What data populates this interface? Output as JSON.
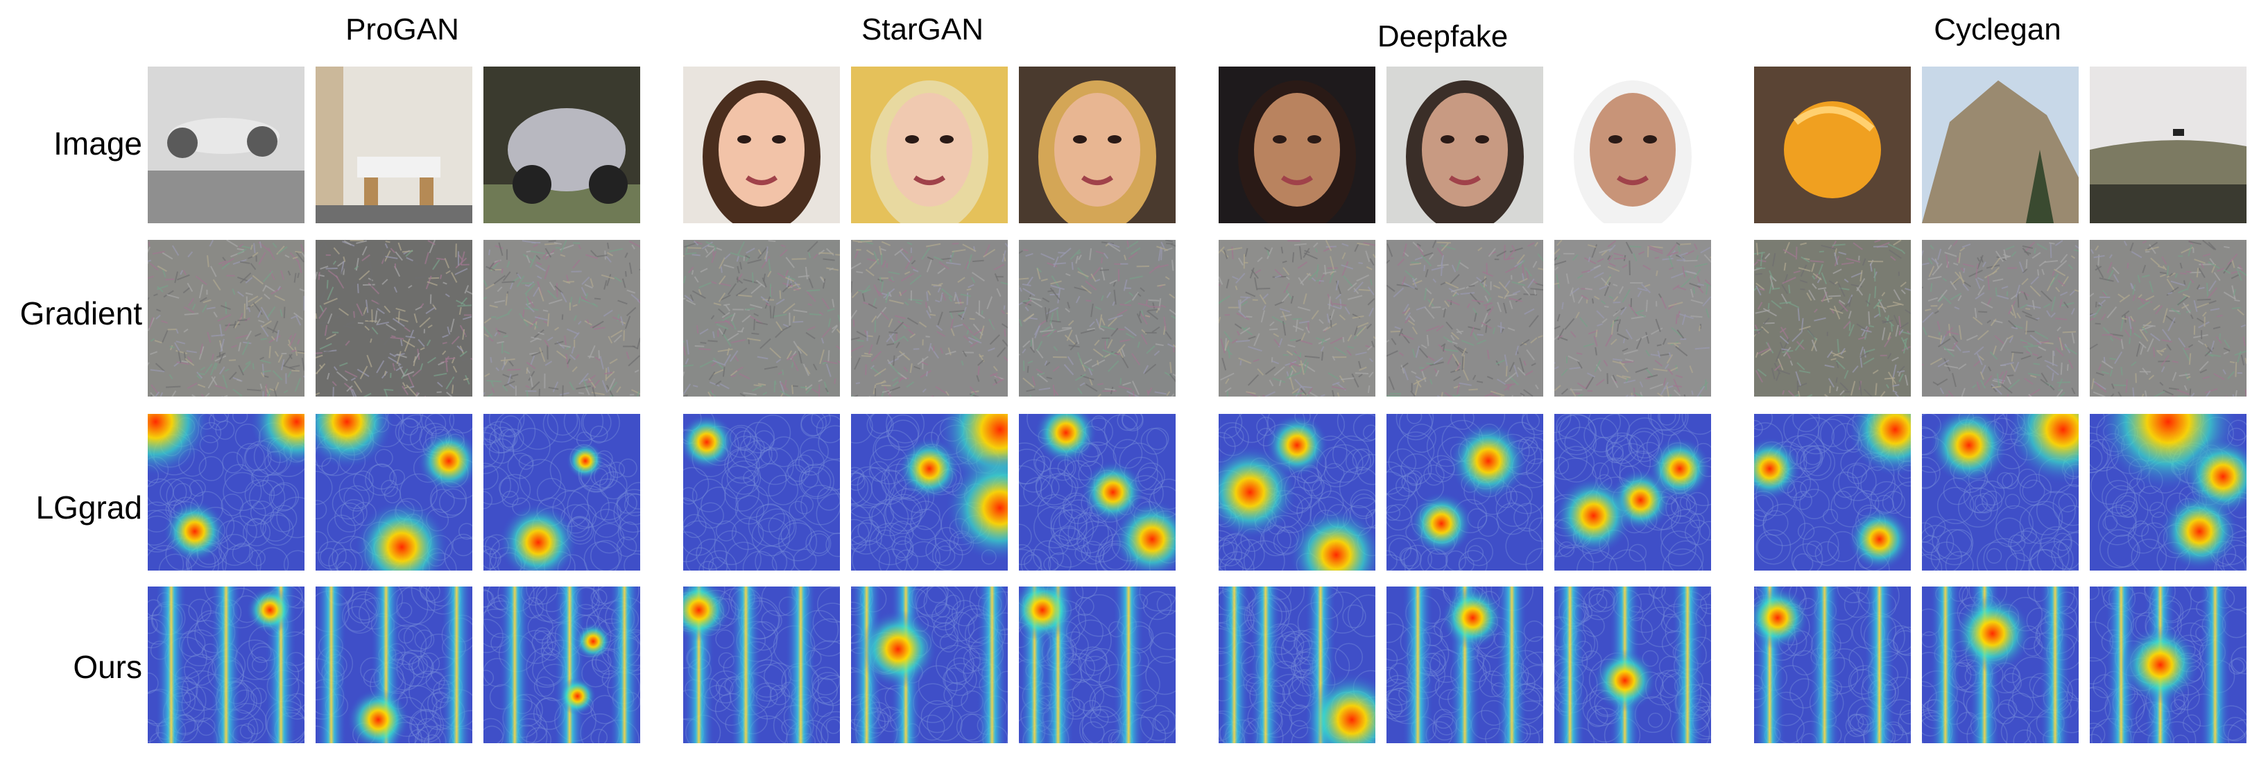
{
  "groups": [
    "ProGAN",
    "StarGAN",
    "Deepfake",
    "Cyclegan"
  ],
  "rows": [
    "Image",
    "Gradient",
    "LGgrad",
    "Ours"
  ],
  "panels": {
    "Image": [
      {
        "icon": "airplane-photo-icon",
        "colors": [
          "#d8d8d8",
          "#8f8f8f",
          "#5a5a5a"
        ]
      },
      {
        "icon": "dining-room-photo-icon",
        "colors": [
          "#e6e2da",
          "#b58a55",
          "#6e6e6e"
        ]
      },
      {
        "icon": "motor-scooter-photo-icon",
        "colors": [
          "#3a3a2e",
          "#b8b8c0",
          "#6f7a55"
        ]
      },
      {
        "icon": "face-photo-icon",
        "colors": [
          "#e9e4de",
          "#f2c3a8",
          "#4a2e1e"
        ]
      },
      {
        "icon": "face-photo-icon",
        "colors": [
          "#e5c15a",
          "#f0c9b0",
          "#e8d9a0"
        ]
      },
      {
        "icon": "face-photo-icon",
        "colors": [
          "#4a3a2e",
          "#e8b692",
          "#d4a656"
        ]
      },
      {
        "icon": "face-photo-icon",
        "colors": [
          "#1e1a1c",
          "#b9835f",
          "#2a1a16"
        ]
      },
      {
        "icon": "face-photo-icon",
        "colors": [
          "#d7d8d6",
          "#c89a82",
          "#3a2e28"
        ]
      },
      {
        "icon": "face-photo-icon",
        "colors": [
          "#ffffff",
          "#c89478",
          "#f2f2f2"
        ]
      },
      {
        "icon": "orange-photo-icon",
        "colors": [
          "#5a4434",
          "#f0a020",
          "#3a2a22"
        ]
      },
      {
        "icon": "cliff-photo-icon",
        "colors": [
          "#c8d8e8",
          "#9a8a70",
          "#3a4a30"
        ]
      },
      {
        "icon": "hill-horse-photo-icon",
        "colors": [
          "#e8e6e6",
          "#7c7a62",
          "#3a3a30"
        ]
      }
    ],
    "Gradient": [
      "#8a8a86",
      "#6e6e6c",
      "#8c8c8a",
      "#888a88",
      "#8a8a8a",
      "#868888",
      "#8e8e8c",
      "#8c8c8c",
      "#909090",
      "#7a7c72",
      "#8a8a8a",
      "#8a8a88"
    ],
    "LGgrad": [
      {
        "hotspots": [
          [
            0.05,
            0.05,
            0.35
          ],
          [
            0.95,
            0.05,
            0.3
          ],
          [
            0.3,
            0.75,
            0.2
          ]
        ]
      },
      {
        "hotspots": [
          [
            0.2,
            0.05,
            0.3
          ],
          [
            0.55,
            0.85,
            0.3
          ],
          [
            0.85,
            0.3,
            0.2
          ]
        ]
      },
      {
        "hotspots": [
          [
            0.35,
            0.82,
            0.25
          ],
          [
            0.65,
            0.3,
            0.12
          ]
        ]
      },
      {
        "hotspots": [
          [
            0.15,
            0.18,
            0.18
          ]
        ]
      },
      {
        "hotspots": [
          [
            0.95,
            0.1,
            0.4
          ],
          [
            0.95,
            0.6,
            0.35
          ],
          [
            0.5,
            0.35,
            0.2
          ]
        ]
      },
      {
        "hotspots": [
          [
            0.3,
            0.12,
            0.2
          ],
          [
            0.6,
            0.5,
            0.2
          ],
          [
            0.85,
            0.8,
            0.25
          ]
        ]
      },
      {
        "hotspots": [
          [
            0.2,
            0.5,
            0.3
          ],
          [
            0.75,
            0.9,
            0.3
          ],
          [
            0.5,
            0.2,
            0.2
          ]
        ]
      },
      {
        "hotspots": [
          [
            0.65,
            0.3,
            0.25
          ],
          [
            0.35,
            0.7,
            0.2
          ]
        ]
      },
      {
        "hotspots": [
          [
            0.55,
            0.55,
            0.2
          ],
          [
            0.25,
            0.65,
            0.25
          ],
          [
            0.8,
            0.35,
            0.2
          ]
        ]
      },
      {
        "hotspots": [
          [
            0.9,
            0.1,
            0.3
          ],
          [
            0.1,
            0.35,
            0.2
          ],
          [
            0.8,
            0.8,
            0.2
          ]
        ]
      },
      {
        "hotspots": [
          [
            0.9,
            0.1,
            0.35
          ],
          [
            0.3,
            0.2,
            0.25
          ]
        ]
      },
      {
        "hotspots": [
          [
            0.5,
            0.05,
            0.45
          ],
          [
            0.85,
            0.4,
            0.25
          ],
          [
            0.7,
            0.75,
            0.25
          ]
        ]
      }
    ],
    "Ours": [
      {
        "stripes": [
          0.15,
          0.5,
          0.85
        ],
        "hotspots": [
          [
            0.78,
            0.15,
            0.15
          ]
        ]
      },
      {
        "stripes": [
          0.1,
          0.45,
          0.9
        ],
        "hotspots": [
          [
            0.4,
            0.85,
            0.2
          ]
        ]
      },
      {
        "stripes": [
          0.2,
          0.55,
          0.9
        ],
        "hotspots": [
          [
            0.7,
            0.35,
            0.12
          ],
          [
            0.6,
            0.7,
            0.12
          ]
        ]
      },
      {
        "stripes": [
          0.1,
          0.4,
          0.75
        ],
        "hotspots": [
          [
            0.1,
            0.15,
            0.2
          ]
        ]
      },
      {
        "stripes": [
          0.1,
          0.35,
          0.9
        ],
        "hotspots": [
          [
            0.3,
            0.4,
            0.25
          ]
        ]
      },
      {
        "stripes": [
          0.1,
          0.25,
          0.7
        ],
        "hotspots": [
          [
            0.15,
            0.15,
            0.2
          ]
        ]
      },
      {
        "stripes": [
          0.1,
          0.3,
          0.65
        ],
        "hotspots": [
          [
            0.85,
            0.85,
            0.3
          ]
        ]
      },
      {
        "stripes": [
          0.2,
          0.5,
          0.8
        ],
        "hotspots": [
          [
            0.55,
            0.2,
            0.2
          ]
        ]
      },
      {
        "stripes": [
          0.1,
          0.45,
          0.85
        ],
        "hotspots": [
          [
            0.45,
            0.6,
            0.2
          ]
        ]
      },
      {
        "stripes": [
          0.1,
          0.45,
          0.8
        ],
        "hotspots": [
          [
            0.15,
            0.2,
            0.2
          ]
        ]
      },
      {
        "stripes": [
          0.15,
          0.4,
          0.85
        ],
        "hotspots": [
          [
            0.45,
            0.3,
            0.25
          ]
        ]
      },
      {
        "stripes": [
          0.2,
          0.45,
          0.8
        ],
        "hotspots": [
          [
            0.45,
            0.5,
            0.25
          ]
        ]
      }
    ]
  }
}
